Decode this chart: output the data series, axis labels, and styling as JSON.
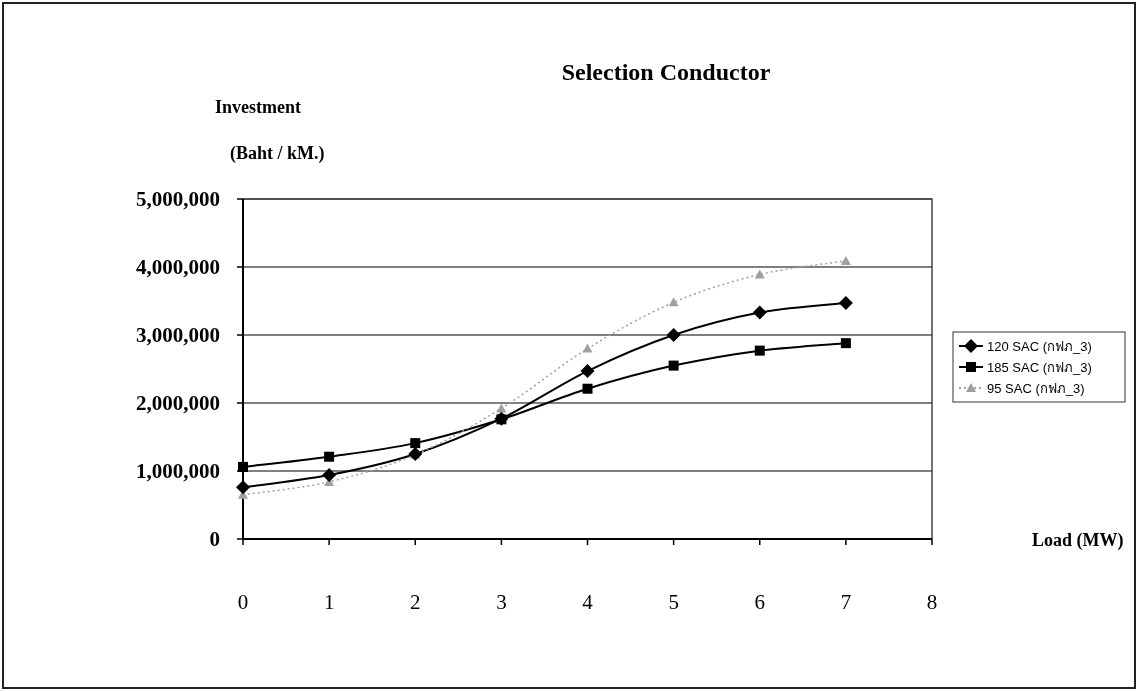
{
  "chart_data": {
    "type": "line",
    "title": "Selection Conductor",
    "ylabel": "Investment\n(Baht / kM.)",
    "annotations": [
      "Load (MW)"
    ],
    "x": [
      0,
      1,
      2,
      3,
      4,
      5,
      6,
      7
    ],
    "series": [
      {
        "name": "120 SAC (กฟภ_3)",
        "color": "#000000",
        "marker": "diamond",
        "line_style": "solid",
        "values": [
          760000,
          940000,
          1250000,
          1770000,
          2470000,
          3000000,
          3330000,
          3470000
        ]
      },
      {
        "name": "185 SAC (กฟภ_3)",
        "color": "#000000",
        "marker": "square",
        "line_style": "solid",
        "values": [
          1060000,
          1210000,
          1410000,
          1760000,
          2210000,
          2550000,
          2770000,
          2880000
        ]
      },
      {
        "name": "95 SAC (กฟภ_3)",
        "color": "#a0a0a0",
        "marker": "triangle",
        "line_style": "dotted",
        "values": [
          650000,
          840000,
          1240000,
          1920000,
          2800000,
          3480000,
          3890000,
          4090000
        ]
      }
    ],
    "xlim": [
      0,
      8
    ],
    "xticks": [
      0,
      1,
      2,
      3,
      4,
      5,
      6,
      7,
      8
    ],
    "ylim": [
      0,
      5000000
    ],
    "yticks": [
      {
        "value": 0,
        "label": "0"
      },
      {
        "value": 1000000,
        "label": "1,000,000"
      },
      {
        "value": 2000000,
        "label": "2,000,000"
      },
      {
        "value": 3000000,
        "label": "3,000,000"
      },
      {
        "value": 4000000,
        "label": "4,000,000"
      },
      {
        "value": 5000000,
        "label": "5,000,000"
      }
    ],
    "grid": "y",
    "legend": "right"
  }
}
